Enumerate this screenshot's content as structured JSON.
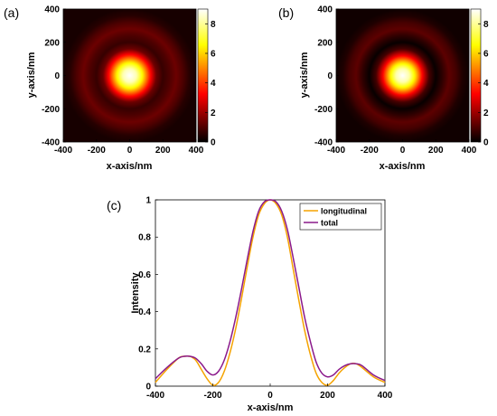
{
  "panels": {
    "a": {
      "label": "(a)"
    },
    "b": {
      "label": "(b)"
    },
    "c": {
      "label": "(c)"
    }
  },
  "chart_data": [
    {
      "type": "heatmap",
      "panel": "(a)",
      "xlabel": "x-axis/nm",
      "ylabel": "y-axis/nm",
      "xlim": [
        -400,
        400
      ],
      "ylim": [
        -400,
        400
      ],
      "xticks": [
        -400,
        -200,
        0,
        200,
        400
      ],
      "yticks": [
        -400,
        -200,
        0,
        200,
        400
      ],
      "colorbar": {
        "range": [
          0,
          9
        ],
        "ticks": [
          0,
          2,
          4,
          6,
          8
        ],
        "colormap": "hot"
      },
      "profile": {
        "r": [
          0,
          40,
          80,
          120,
          160,
          200,
          240,
          280,
          320,
          360,
          400
        ],
        "intensity": [
          9.0,
          8.3,
          6.3,
          3.7,
          1.4,
          0.7,
          1.0,
          1.4,
          1.0,
          0.5,
          0.3
        ]
      }
    },
    {
      "type": "heatmap",
      "panel": "(b)",
      "xlabel": "x-axis/nm",
      "ylabel": "y-axis/nm",
      "xlim": [
        -400,
        400
      ],
      "ylim": [
        -400,
        400
      ],
      "xticks": [
        -400,
        -200,
        0,
        200,
        400
      ],
      "yticks": [
        -400,
        -200,
        0,
        200,
        400
      ],
      "colorbar": {
        "range": [
          0,
          9
        ],
        "ticks": [
          0,
          2,
          4,
          6,
          8
        ],
        "colormap": "hot"
      },
      "profile": {
        "r": [
          0,
          40,
          80,
          120,
          160,
          200,
          240,
          280,
          320,
          360,
          400
        ],
        "intensity": [
          9.0,
          8.2,
          6.0,
          3.2,
          0.9,
          0.1,
          0.6,
          1.2,
          0.9,
          0.4,
          0.2
        ]
      }
    },
    {
      "type": "line",
      "panel": "(c)",
      "xlabel": "x-axis/nm",
      "ylabel": "Intensity",
      "xlim": [
        -400,
        400
      ],
      "ylim": [
        0,
        1
      ],
      "xticks": [
        -400,
        -200,
        0,
        200,
        400
      ],
      "yticks": [
        0,
        0.2,
        0.4,
        0.6,
        0.8,
        1
      ],
      "ytick_labels": [
        "0",
        "0.2",
        "0.4",
        "0.6",
        "0.8",
        "1"
      ],
      "legend": "top-right",
      "x": [
        -400,
        -360,
        -320,
        -300,
        -280,
        -260,
        -240,
        -220,
        -200,
        -180,
        -160,
        -140,
        -120,
        -100,
        -80,
        -60,
        -40,
        -20,
        0,
        20,
        40,
        60,
        80,
        100,
        120,
        140,
        160,
        180,
        200,
        220,
        240,
        260,
        280,
        300,
        320,
        360,
        400
      ],
      "series": [
        {
          "name": "longitudinal",
          "color": "#f5a300",
          "values": [
            0.02,
            0.09,
            0.15,
            0.16,
            0.16,
            0.14,
            0.09,
            0.04,
            0.005,
            0.02,
            0.08,
            0.18,
            0.31,
            0.47,
            0.64,
            0.8,
            0.92,
            0.98,
            1.0,
            0.98,
            0.92,
            0.8,
            0.63,
            0.46,
            0.3,
            0.17,
            0.07,
            0.02,
            0.005,
            0.03,
            0.07,
            0.1,
            0.12,
            0.12,
            0.1,
            0.05,
            0.02
          ]
        },
        {
          "name": "total",
          "color": "#8b1a8b",
          "values": [
            0.04,
            0.1,
            0.15,
            0.16,
            0.16,
            0.15,
            0.12,
            0.08,
            0.06,
            0.08,
            0.14,
            0.24,
            0.37,
            0.52,
            0.68,
            0.83,
            0.94,
            0.99,
            1.0,
            0.99,
            0.94,
            0.84,
            0.69,
            0.53,
            0.37,
            0.24,
            0.13,
            0.07,
            0.05,
            0.06,
            0.09,
            0.11,
            0.12,
            0.12,
            0.11,
            0.06,
            0.03
          ]
        }
      ]
    }
  ]
}
